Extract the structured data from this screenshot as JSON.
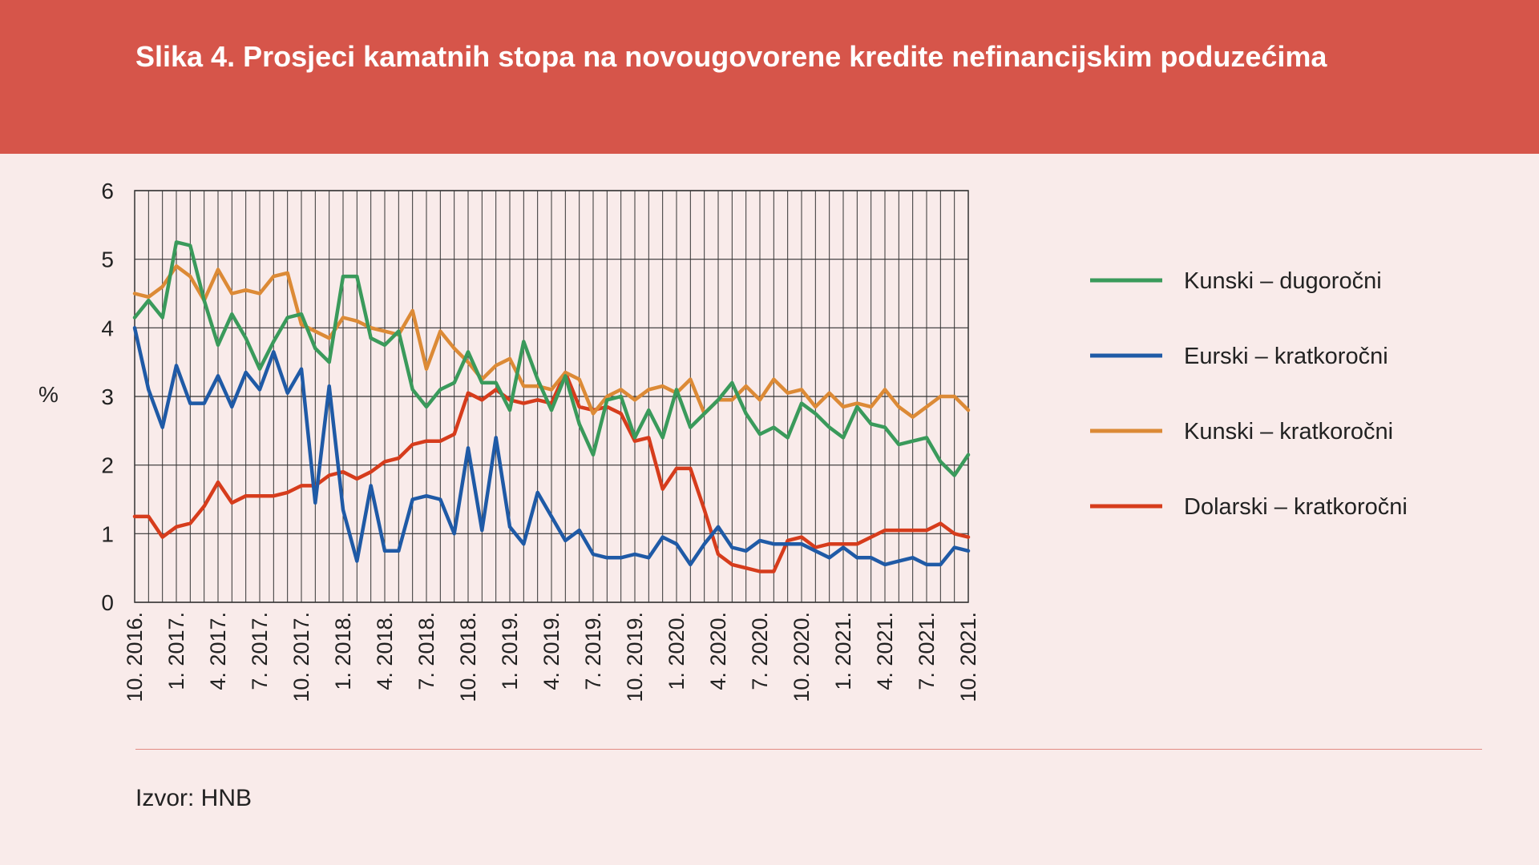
{
  "header": {
    "title": "Slika 4. Prosjeci kamatnih stopa na novougovorene kredite nefinancijskim poduzećima"
  },
  "footer": {
    "source": "Izvor: HNB"
  },
  "colors": {
    "kunski_dugorocni": "#3a9a5b",
    "eurski_kratkorocni": "#1f5aa6",
    "kunski_kratkorocni": "#dc8a36",
    "dolarski_kratkorocni": "#d63c1c"
  },
  "chart_data": {
    "type": "line",
    "title": "",
    "xlabel": "",
    "ylabel": "%",
    "ylim": [
      0,
      6
    ],
    "yticks": [
      0,
      1,
      2,
      3,
      4,
      5,
      6
    ],
    "grid": true,
    "legend_position": "right",
    "x_start": "10. 2016.",
    "x_end": "10. 2021.",
    "x_tick_labels": [
      "10. 2016.",
      "1. 2017.",
      "4. 2017.",
      "7. 2017.",
      "10. 2017.",
      "1. 2018.",
      "4. 2018.",
      "7. 2018.",
      "10. 2018.",
      "1. 2019.",
      "4. 2019.",
      "7. 2019.",
      "10. 2019.",
      "1. 2020.",
      "4. 2020.",
      "7. 2020.",
      "10. 2020.",
      "1. 2021.",
      "4. 2021.",
      "7. 2021.",
      "10. 2021."
    ],
    "series": [
      {
        "name": "Kunski – dugoročni",
        "values": [
          4.15,
          4.4,
          4.15,
          5.25,
          5.2,
          4.4,
          3.75,
          4.2,
          3.85,
          3.4,
          3.8,
          4.15,
          4.2,
          3.7,
          3.5,
          4.75,
          4.75,
          3.85,
          3.75,
          3.95,
          3.1,
          2.85,
          3.1,
          3.2,
          3.65,
          3.2,
          3.2,
          2.8,
          3.8,
          3.25,
          2.8,
          3.3,
          2.6,
          2.15,
          2.95,
          3.0,
          2.4,
          2.8,
          2.4,
          3.1,
          2.55,
          2.75,
          2.95,
          3.2,
          2.75,
          2.45,
          2.55,
          2.4,
          2.9,
          2.75,
          2.55,
          2.4,
          2.85,
          2.6,
          2.55,
          2.3,
          2.35,
          2.4,
          2.05,
          1.85,
          2.15
        ]
      },
      {
        "name": "Eurski – kratkoročni",
        "values": [
          4.0,
          3.1,
          2.55,
          3.45,
          2.9,
          2.9,
          3.3,
          2.85,
          3.35,
          3.1,
          3.65,
          3.05,
          3.4,
          1.45,
          3.15,
          1.35,
          0.6,
          1.7,
          0.75,
          0.75,
          1.5,
          1.55,
          1.5,
          1.0,
          2.25,
          1.05,
          2.4,
          1.1,
          0.85,
          1.6,
          1.25,
          0.9,
          1.05,
          0.7,
          0.65,
          0.65,
          0.7,
          0.65,
          0.95,
          0.85,
          0.55,
          0.85,
          1.1,
          0.8,
          0.75,
          0.9,
          0.85,
          0.85,
          0.85,
          0.75,
          0.65,
          0.8,
          0.65,
          0.65,
          0.55,
          0.6,
          0.65,
          0.55,
          0.55,
          0.8,
          0.75
        ]
      },
      {
        "name": "Kunski – kratkoročni",
        "values": [
          4.5,
          4.45,
          4.6,
          4.9,
          4.75,
          4.4,
          4.85,
          4.5,
          4.55,
          4.5,
          4.75,
          4.8,
          4.05,
          3.95,
          3.85,
          4.15,
          4.1,
          4.0,
          3.95,
          3.9,
          4.25,
          3.4,
          3.95,
          3.7,
          3.5,
          3.25,
          3.45,
          3.55,
          3.15,
          3.15,
          3.1,
          3.35,
          3.25,
          2.75,
          3.0,
          3.1,
          2.95,
          3.1,
          3.15,
          3.05,
          3.25,
          2.75,
          2.95,
          2.95,
          3.15,
          2.95,
          3.25,
          3.05,
          3.1,
          2.85,
          3.05,
          2.85,
          2.9,
          2.85,
          3.1,
          2.85,
          2.7,
          2.85,
          3.0,
          3.0,
          2.8
        ]
      },
      {
        "name": "Dolarski – kratkoročni",
        "values": [
          1.25,
          1.25,
          0.95,
          1.1,
          1.15,
          1.4,
          1.75,
          1.45,
          1.55,
          1.55,
          1.55,
          1.6,
          1.7,
          1.7,
          1.85,
          1.9,
          1.8,
          1.9,
          2.05,
          2.1,
          2.3,
          2.35,
          2.35,
          2.45,
          3.05,
          2.95,
          3.1,
          2.95,
          2.9,
          2.95,
          2.9,
          3.35,
          2.85,
          2.8,
          2.85,
          2.75,
          2.35,
          2.4,
          1.65,
          1.95,
          1.95,
          1.35,
          0.7,
          0.55,
          0.5,
          0.45,
          0.45,
          0.9,
          0.95,
          0.8,
          0.85,
          0.85,
          0.85,
          0.95,
          1.05,
          1.05,
          1.05,
          1.05,
          1.15,
          1.0,
          0.95
        ]
      }
    ]
  }
}
